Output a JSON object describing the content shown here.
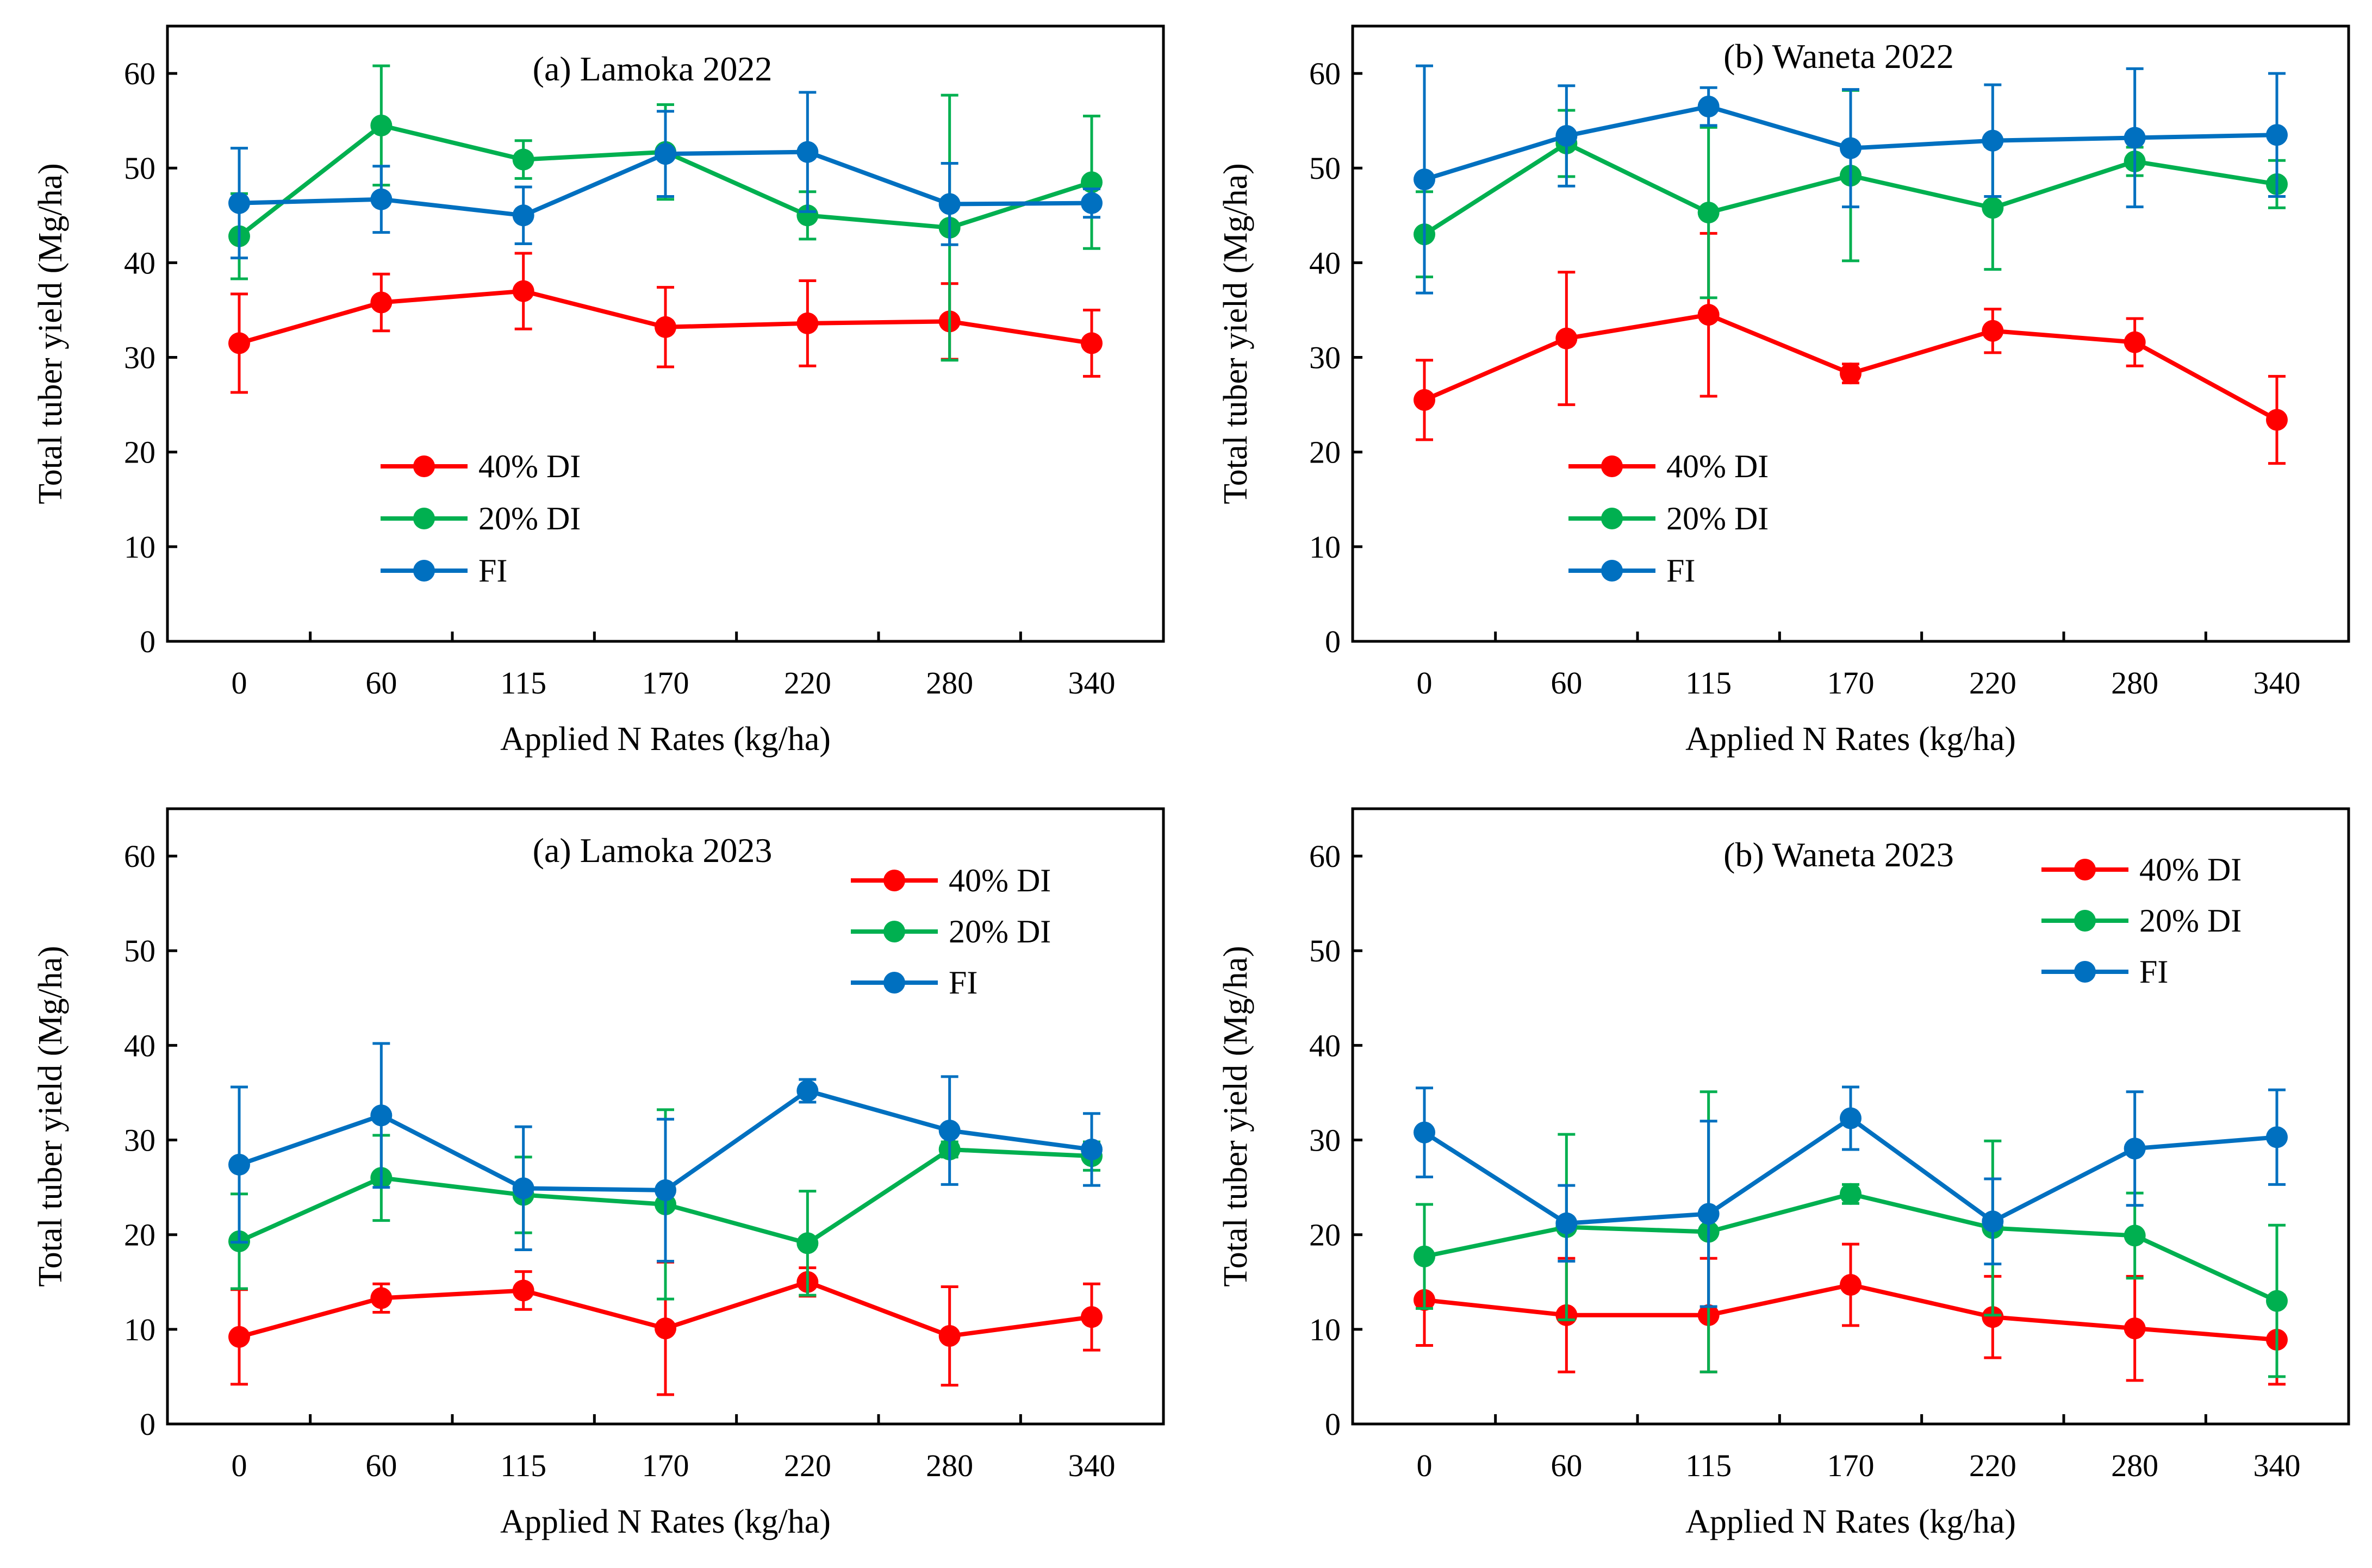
{
  "series_names": [
    "40% DI",
    "20% DI",
    "FI"
  ],
  "colors": {
    "40% DI": "#ff0000",
    "20% DI": "#00b050",
    "FI": "#0070c0"
  },
  "chart_data": [
    {
      "type": "line",
      "title": "(a) Lamoka 2022",
      "xlabel": "Applied N Rates (kg/ha)",
      "ylabel": "Total tuber yield (Mg/ha)",
      "categories": [
        "0",
        "60",
        "115",
        "170",
        "220",
        "280",
        "340"
      ],
      "ylim": [
        0,
        65
      ],
      "yticks": [
        0,
        10,
        20,
        30,
        40,
        50,
        60
      ],
      "legend_position": "lower-left",
      "series": [
        {
          "name": "40% DI",
          "values": [
            31.5,
            35.8,
            37.0,
            33.2,
            33.6,
            33.8,
            31.5
          ],
          "errors": [
            5.2,
            3.0,
            4.0,
            4.2,
            4.5,
            4.0,
            3.5
          ]
        },
        {
          "name": "20% DI",
          "values": [
            42.8,
            54.5,
            50.9,
            51.7,
            45.0,
            43.7,
            48.5
          ],
          "errors": [
            4.5,
            6.3,
            2.0,
            5.0,
            2.5,
            14.0,
            7.0
          ]
        },
        {
          "name": "FI",
          "values": [
            46.3,
            46.7,
            45.0,
            51.5,
            51.7,
            46.2,
            46.3
          ],
          "errors": [
            5.8,
            3.5,
            3.0,
            4.5,
            6.3,
            4.3,
            1.5
          ]
        }
      ]
    },
    {
      "type": "line",
      "title": "(b) Waneta 2022",
      "xlabel": "Applied N Rates (kg/ha)",
      "ylabel": "Total tuber yield (Mg/ha)",
      "categories": [
        "0",
        "60",
        "115",
        "170",
        "220",
        "280",
        "340"
      ],
      "ylim": [
        0,
        65
      ],
      "yticks": [
        0,
        10,
        20,
        30,
        40,
        50,
        60
      ],
      "legend_position": "lower-left",
      "series": [
        {
          "name": "40% DI",
          "values": [
            25.5,
            32.0,
            34.5,
            28.3,
            32.8,
            31.6,
            23.4
          ],
          "errors": [
            4.2,
            7.0,
            8.6,
            1.0,
            2.3,
            2.5,
            4.6
          ]
        },
        {
          "name": "20% DI",
          "values": [
            43.0,
            52.6,
            45.3,
            49.2,
            45.8,
            50.7,
            48.3
          ],
          "errors": [
            4.5,
            3.5,
            9.0,
            9.0,
            6.5,
            1.5,
            2.5
          ]
        },
        {
          "name": "FI",
          "values": [
            48.8,
            53.4,
            56.5,
            52.1,
            52.9,
            53.2,
            53.5
          ],
          "errors": [
            12.0,
            5.3,
            2.0,
            6.2,
            5.9,
            7.3,
            6.5
          ]
        }
      ]
    },
    {
      "type": "line",
      "title": "(a) Lamoka 2023",
      "xlabel": "Applied N Rates (kg/ha)",
      "ylabel": "Total tuber yield (Mg/ha)",
      "categories": [
        "0",
        "60",
        "115",
        "170",
        "220",
        "280",
        "340"
      ],
      "ylim": [
        0,
        65
      ],
      "yticks": [
        0,
        10,
        20,
        30,
        40,
        50,
        60
      ],
      "legend_position": "top-right",
      "series": [
        {
          "name": "40% DI",
          "values": [
            9.2,
            13.3,
            14.1,
            10.1,
            15.0,
            9.3,
            11.3
          ],
          "errors": [
            5.0,
            1.5,
            2.0,
            7.0,
            1.5,
            5.2,
            3.5
          ]
        },
        {
          "name": "20% DI",
          "values": [
            19.3,
            26.0,
            24.2,
            23.2,
            19.1,
            29.0,
            28.3
          ],
          "errors": [
            5.0,
            4.5,
            4.0,
            10.0,
            5.5,
            0.8,
            1.5
          ]
        },
        {
          "name": "FI",
          "values": [
            27.4,
            32.6,
            24.9,
            24.7,
            35.2,
            31.0,
            29.0
          ],
          "errors": [
            8.2,
            7.6,
            6.5,
            7.5,
            1.2,
            5.7,
            3.8
          ]
        }
      ]
    },
    {
      "type": "line",
      "title": "(b) Waneta 2023",
      "xlabel": "Applied N Rates (kg/ha)",
      "ylabel": "Total tuber yield (Mg/ha)",
      "categories": [
        "0",
        "60",
        "115",
        "170",
        "220",
        "280",
        "340"
      ],
      "ylim": [
        0,
        65
      ],
      "yticks": [
        0,
        10,
        20,
        30,
        40,
        50,
        60
      ],
      "legend_position": "top-right",
      "series": [
        {
          "name": "40% DI",
          "values": [
            13.1,
            11.5,
            11.5,
            14.7,
            11.3,
            10.1,
            8.9
          ],
          "errors": [
            4.8,
            6.0,
            6.0,
            4.3,
            4.3,
            5.5,
            4.7
          ]
        },
        {
          "name": "20% DI",
          "values": [
            17.7,
            20.8,
            20.3,
            24.3,
            20.7,
            19.9,
            13.0
          ],
          "errors": [
            5.5,
            9.8,
            14.8,
            1.0,
            9.2,
            4.5,
            8.0
          ]
        },
        {
          "name": "FI",
          "values": [
            30.8,
            21.2,
            22.2,
            32.3,
            21.4,
            29.1,
            30.3
          ],
          "errors": [
            4.7,
            4.0,
            9.8,
            3.3,
            4.5,
            6.0,
            5.0
          ]
        }
      ]
    }
  ]
}
